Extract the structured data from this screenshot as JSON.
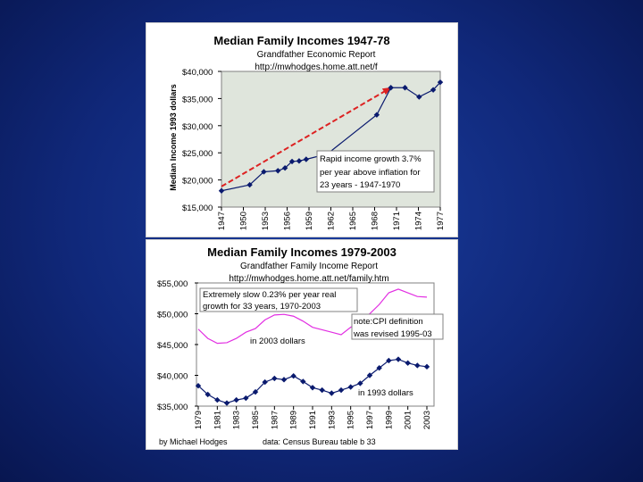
{
  "chart_data": [
    {
      "type": "line",
      "title": "Median Family Incomes 1947-78",
      "subtitle": "Grandfather Economic Report",
      "url": "http://mwhodges.home.att.net/f",
      "ylabel": "Median Income 1993 dollars",
      "xlabel": "",
      "ylim": [
        15000,
        40000
      ],
      "yticks": [
        15000,
        20000,
        25000,
        30000,
        35000,
        40000
      ],
      "ytick_labels": [
        "$15,000",
        "$20,000",
        "$25,000",
        "$30,000",
        "$35,000",
        "$40,000"
      ],
      "xlim": [
        1947,
        1978
      ],
      "xtick_labels": [
        "1947",
        "1950",
        "1953",
        "1956",
        "1959",
        "1962",
        "1965",
        "1968",
        "1971",
        "1974",
        "1977"
      ],
      "grid": false,
      "plot_background": "#dfe5dc",
      "series": [
        {
          "color": "#0a1a6e",
          "x": [
            1947,
            1951,
            1953,
            1955,
            1956,
            1957,
            1958,
            1959,
            1962,
            1969,
            1971,
            1973,
            1975,
            1977,
            1978
          ],
          "y": [
            18000,
            19100,
            21500,
            21700,
            22200,
            23400,
            23500,
            23800,
            24800,
            32000,
            37000,
            37000,
            35300,
            36600,
            38000
          ]
        }
      ],
      "trend_arrow": {
        "color": "#dd2222",
        "x": [
          1947,
          1971
        ],
        "y": [
          18800,
          37000
        ]
      },
      "annotation": "Rapid income growth 3.7% per year above inflation for 23 years - 1947-1970"
    },
    {
      "type": "line",
      "title": "Median Family Incomes 1979-2003",
      "subtitle": "Grandfather Family Income Report",
      "url": "http://mwhodges.home.att.net/family.htm",
      "ylim": [
        35000,
        55000
      ],
      "yticks": [
        35000,
        40000,
        45000,
        50000,
        55000
      ],
      "ytick_labels": [
        "$35,000",
        "$40,000",
        "$45,000",
        "$50,000",
        "$55,000"
      ],
      "xlim": [
        1979,
        2003
      ],
      "xtick_labels": [
        "1979",
        "1981",
        "1983",
        "1985",
        "1987",
        "1989",
        "1991",
        "1993",
        "1995",
        "1997",
        "1999",
        "2001",
        "2003"
      ],
      "grid": false,
      "plot_background": "#ffffff",
      "series": [
        {
          "name": "in 2003 dollars",
          "color": "#e22fe2",
          "x": [
            1979,
            1980,
            1981,
            1982,
            1983,
            1984,
            1985,
            1986,
            1987,
            1988,
            1989,
            1990,
            1991,
            1992,
            1993,
            1994,
            1995,
            1996,
            1997,
            1998,
            1999,
            2000,
            2001,
            2002,
            2003
          ],
          "y": [
            47500,
            46000,
            45200,
            45300,
            46000,
            47000,
            47600,
            49000,
            49800,
            49900,
            49600,
            48800,
            47800,
            47400,
            47000,
            46600,
            47800,
            48600,
            50000,
            51500,
            53400,
            54000,
            53400,
            52800,
            52700
          ]
        },
        {
          "name": "in 1993 dollars",
          "color": "#0a1a6e",
          "x": [
            1979,
            1980,
            1981,
            1982,
            1983,
            1984,
            1985,
            1986,
            1987,
            1988,
            1989,
            1990,
            1991,
            1992,
            1993,
            1994,
            1995,
            1996,
            1997,
            1998,
            1999,
            2000,
            2001,
            2002,
            2003
          ],
          "y": [
            38300,
            36900,
            36000,
            35500,
            36000,
            36300,
            37300,
            38900,
            39500,
            39300,
            39900,
            39000,
            38000,
            37600,
            37100,
            37600,
            38100,
            38700,
            40000,
            41200,
            42400,
            42600,
            42000,
            41600,
            41400
          ]
        }
      ],
      "annotations": [
        "Extremely slow 0.23% per year real growth for 33 years, 1970-2003",
        "note:CPI definition was revised 1995-03"
      ],
      "footer_left": "by Michael Hodges",
      "footer_right": "data: Census Bureau   table b 33"
    }
  ]
}
